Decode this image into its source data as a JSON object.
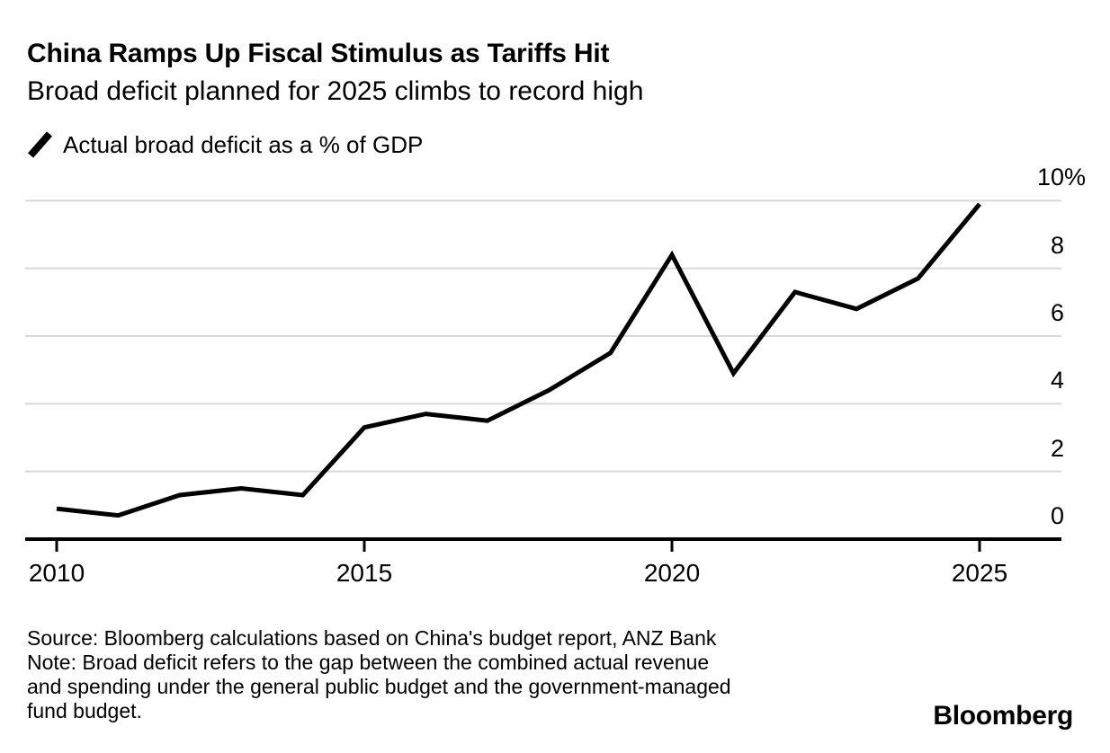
{
  "header": {
    "title": "China Ramps Up Fiscal Stimulus as Tariffs Hit",
    "subtitle": "Broad deficit planned for 2025 climbs to record high"
  },
  "legend": {
    "label": "Actual broad deficit as a % of GDP",
    "swatch_icon": "slash-line-icon",
    "swatch_color": "#000000"
  },
  "chart_data": {
    "type": "line",
    "title": "China Ramps Up Fiscal Stimulus as Tariffs Hit",
    "subtitle": "Broad deficit planned for 2025 climbs to record high",
    "series": [
      {
        "name": "Actual broad deficit as a % of GDP",
        "x": [
          2010,
          2011,
          2012,
          2013,
          2014,
          2015,
          2016,
          2017,
          2018,
          2019,
          2020,
          2021,
          2022,
          2023,
          2024,
          2025
        ],
        "values": [
          0.9,
          0.7,
          1.3,
          1.5,
          1.3,
          3.3,
          3.7,
          3.5,
          4.4,
          5.5,
          8.4,
          4.9,
          7.3,
          6.8,
          7.7,
          9.9
        ]
      }
    ],
    "xlabel": "",
    "ylabel": "% of GDP",
    "xlim": [
      2009.5,
      2026.3
    ],
    "ylim": [
      0,
      10.5
    ],
    "x_ticks": [
      {
        "v": 2010,
        "label": "2010"
      },
      {
        "v": 2015,
        "label": "2015"
      },
      {
        "v": 2020,
        "label": "2020"
      },
      {
        "v": 2025,
        "label": "2025"
      }
    ],
    "y_ticks": [
      {
        "v": 10,
        "label": "10",
        "suffix": "%"
      },
      {
        "v": 8,
        "label": "8",
        "suffix": ""
      },
      {
        "v": 6,
        "label": "6",
        "suffix": ""
      },
      {
        "v": 4,
        "label": "4",
        "suffix": ""
      },
      {
        "v": 2,
        "label": "2",
        "suffix": ""
      },
      {
        "v": 0,
        "label": "0",
        "suffix": ""
      }
    ],
    "grid": "horizontal",
    "legend_position": "top-left",
    "line_color": "#000000",
    "grid_color": "#d8d8d8",
    "axis_color": "#000000"
  },
  "footer": {
    "source_line": "Source: Bloomberg calculations based on China's budget report, ANZ Bank",
    "note_line1": "Note: Broad deficit refers to the gap between the combined actual revenue",
    "note_line2": "and spending under the general public budget and the government-managed",
    "note_line3": "fund budget.",
    "brand": "Bloomberg"
  }
}
